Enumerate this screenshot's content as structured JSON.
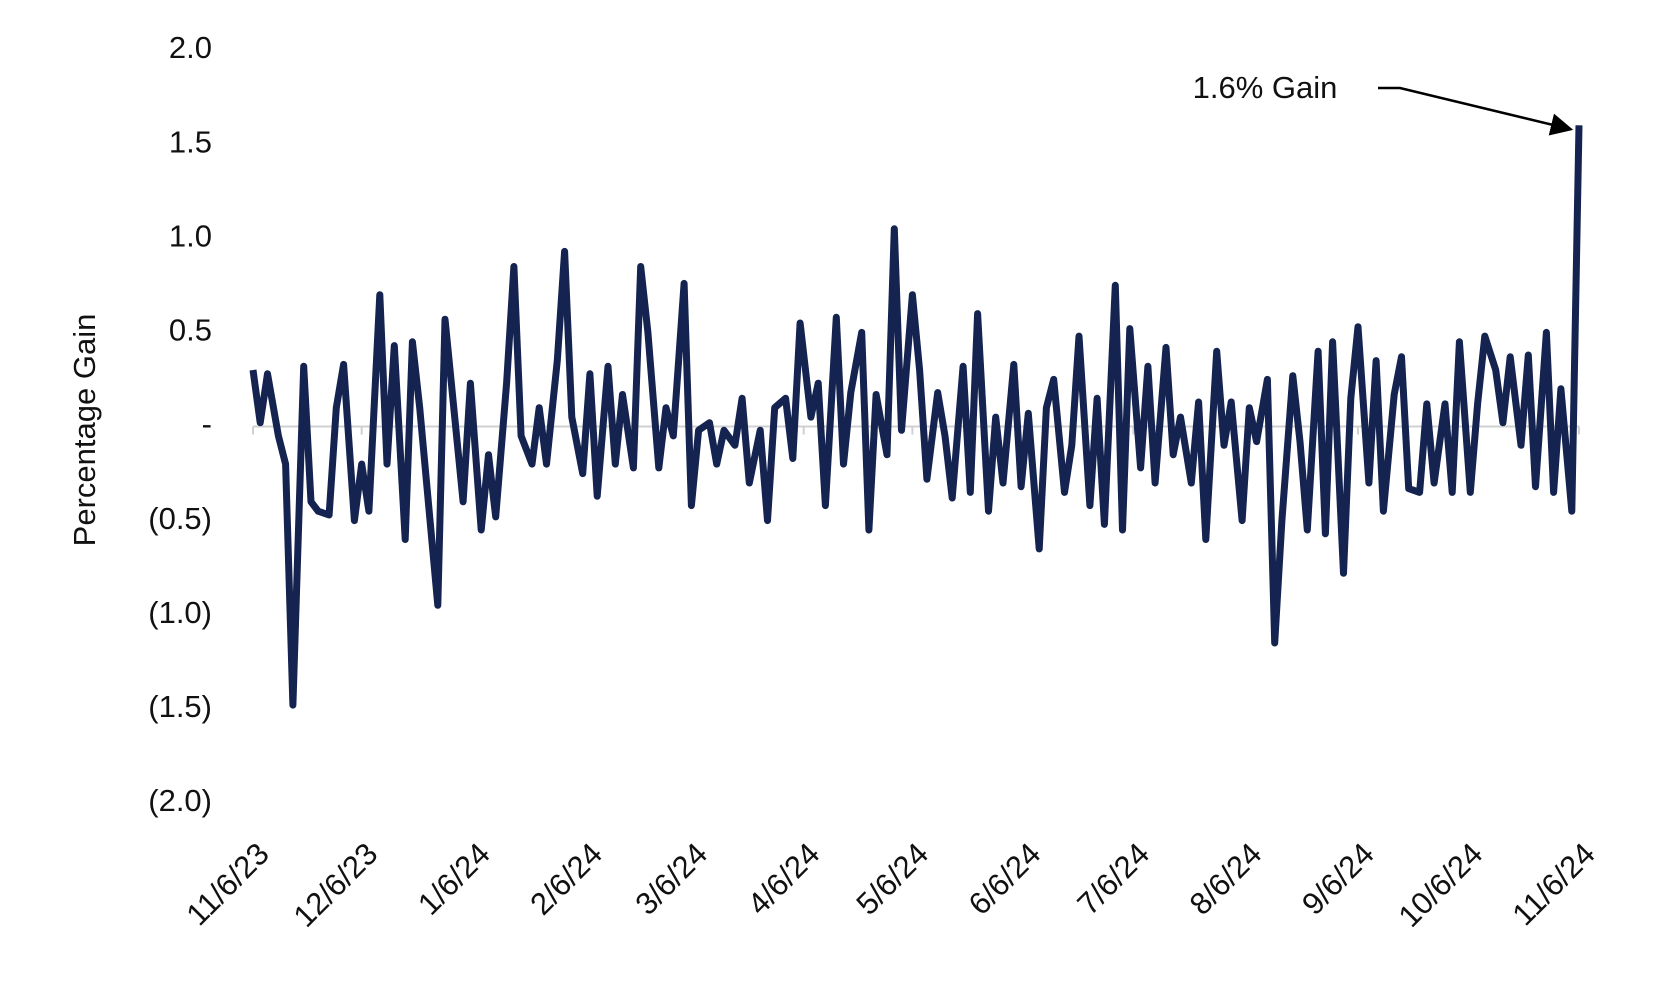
{
  "chart_data": {
    "type": "line",
    "y_label": "Percentage Gain",
    "annotation": "1.6% Gain",
    "x": [
      "11/6/23",
      "11/8/23",
      "11/10/23",
      "11/13/23",
      "11/15/23",
      "11/17/23",
      "11/20/23",
      "11/22/23",
      "11/24/23",
      "11/27/23",
      "11/29/23",
      "12/1/23",
      "12/4/23",
      "12/6/23",
      "12/8/23",
      "12/11/23",
      "12/13/23",
      "12/15/23",
      "12/18/23",
      "12/20/23",
      "12/22/23",
      "12/27/23",
      "12/29/23",
      "1/3/24",
      "1/5/24",
      "1/8/24",
      "1/10/24",
      "1/12/24",
      "1/15/24",
      "1/17/24",
      "1/19/24",
      "1/22/24",
      "1/24/24",
      "1/26/24",
      "1/29/24",
      "1/31/24",
      "2/2/24",
      "2/5/24",
      "2/7/24",
      "2/9/24",
      "2/12/24",
      "2/14/24",
      "2/16/24",
      "2/19/24",
      "2/21/24",
      "2/23/24",
      "2/26/24",
      "2/28/24",
      "3/1/24",
      "3/4/24",
      "3/6/24",
      "3/8/24",
      "3/11/24",
      "3/13/24",
      "3/15/24",
      "3/18/24",
      "3/20/24",
      "3/22/24",
      "3/25/24",
      "3/27/24",
      "3/29/24",
      "4/1/24",
      "4/3/24",
      "4/5/24",
      "4/8/24",
      "4/10/24",
      "4/12/24",
      "4/15/24",
      "4/17/24",
      "4/19/24",
      "4/22/24",
      "4/24/24",
      "4/26/24",
      "4/29/24",
      "5/1/24",
      "5/3/24",
      "5/6/24",
      "5/8/24",
      "5/10/24",
      "5/13/24",
      "5/15/24",
      "5/17/24",
      "5/20/24",
      "5/22/24",
      "5/24/24",
      "5/27/24",
      "5/29/24",
      "5/31/24",
      "6/3/24",
      "6/5/24",
      "6/7/24",
      "6/10/24",
      "6/12/24",
      "6/14/24",
      "6/17/24",
      "6/19/24",
      "6/21/24",
      "6/24/24",
      "6/26/24",
      "6/28/24",
      "7/1/24",
      "7/3/24",
      "7/5/24",
      "7/8/24",
      "7/10/24",
      "7/12/24",
      "7/15/24",
      "7/17/24",
      "7/19/24",
      "7/22/24",
      "7/24/24",
      "7/26/24",
      "7/29/24",
      "7/31/24",
      "8/2/24",
      "8/5/24",
      "8/7/24",
      "8/9/24",
      "8/12/24",
      "8/14/24",
      "8/16/24",
      "8/19/24",
      "8/21/24",
      "8/23/24",
      "8/26/24",
      "8/28/24",
      "8/30/24",
      "9/2/24",
      "9/4/24",
      "9/6/24",
      "9/9/24",
      "9/11/24",
      "9/13/24",
      "9/16/24",
      "9/18/24",
      "9/20/24",
      "9/23/24",
      "9/25/24",
      "9/27/24",
      "9/30/24",
      "10/2/24",
      "10/4/24",
      "10/7/24",
      "10/9/24",
      "10/11/24",
      "10/14/24",
      "10/16/24",
      "10/18/24",
      "10/21/24",
      "10/23/24",
      "10/25/24",
      "10/28/24",
      "10/30/24",
      "11/1/24",
      "11/4/24",
      "11/6/24"
    ],
    "series": [
      {
        "name": "Percentage Gain",
        "color": "#14234f",
        "values": [
          0.3,
          0.02,
          0.28,
          -0.05,
          -0.2,
          -1.48,
          0.32,
          -0.4,
          -0.45,
          -0.47,
          0.1,
          0.33,
          -0.5,
          -0.2,
          -0.45,
          0.7,
          -0.2,
          0.43,
          -0.6,
          0.45,
          0.1,
          -0.95,
          0.57,
          -0.4,
          0.23,
          -0.55,
          -0.15,
          -0.48,
          0.23,
          0.85,
          -0.05,
          -0.2,
          0.1,
          -0.2,
          0.35,
          0.93,
          0.05,
          -0.25,
          0.28,
          -0.37,
          0.32,
          -0.2,
          0.17,
          -0.22,
          0.85,
          0.5,
          -0.22,
          0.1,
          -0.05,
          0.76,
          -0.42,
          -0.02,
          0.02,
          -0.2,
          -0.02,
          -0.1,
          0.15,
          -0.3,
          -0.02,
          -0.5,
          0.1,
          0.15,
          -0.17,
          0.55,
          0.05,
          0.23,
          -0.42,
          0.58,
          -0.2,
          0.18,
          0.5,
          -0.55,
          0.17,
          -0.15,
          1.05,
          -0.02,
          0.7,
          0.3,
          -0.28,
          0.18,
          -0.05,
          -0.38,
          0.32,
          -0.35,
          0.6,
          -0.45,
          0.05,
          -0.3,
          0.33,
          -0.32,
          0.07,
          -0.65,
          0.1,
          0.25,
          -0.35,
          -0.1,
          0.48,
          -0.42,
          0.15,
          -0.52,
          0.75,
          -0.55,
          0.52,
          -0.22,
          0.32,
          -0.3,
          0.42,
          -0.15,
          0.05,
          -0.3,
          0.13,
          -0.6,
          0.4,
          -0.1,
          0.13,
          -0.5,
          0.1,
          -0.08,
          0.25,
          -1.15,
          -0.5,
          0.27,
          -0.08,
          -0.55,
          0.4,
          -0.57,
          0.45,
          -0.78,
          0.15,
          0.53,
          -0.3,
          0.35,
          -0.45,
          0.17,
          0.37,
          -0.33,
          -0.35,
          0.12,
          -0.3,
          0.12,
          -0.35,
          0.45,
          -0.35,
          0.12,
          0.48,
          0.3,
          0.02,
          0.37,
          -0.1,
          0.38,
          -0.32,
          0.5,
          -0.35,
          0.2,
          -0.45,
          1.6
        ]
      }
    ],
    "ylim": [
      -2,
      2
    ],
    "yticks": [
      {
        "value": 2,
        "label": "2.0"
      },
      1.5,
      {
        "value": 1,
        "label": "1.0"
      },
      0.5,
      {
        "value": 0,
        "label": "-"
      },
      {
        "value": -0.5,
        "label": "(0.5)"
      },
      {
        "value": -1,
        "label": "(1.0)"
      },
      {
        "value": -1.5,
        "label": "(1.5)"
      },
      {
        "value": -2,
        "label": "(2.0)"
      }
    ],
    "xticks": [
      "11/6/23",
      "12/6/23",
      "1/6/24",
      "2/6/24",
      "3/6/24",
      "4/6/24",
      "5/6/24",
      "6/6/24",
      "7/6/24",
      "8/6/24",
      "9/6/24",
      "10/6/24",
      "11/6/24"
    ],
    "grid": false
  }
}
